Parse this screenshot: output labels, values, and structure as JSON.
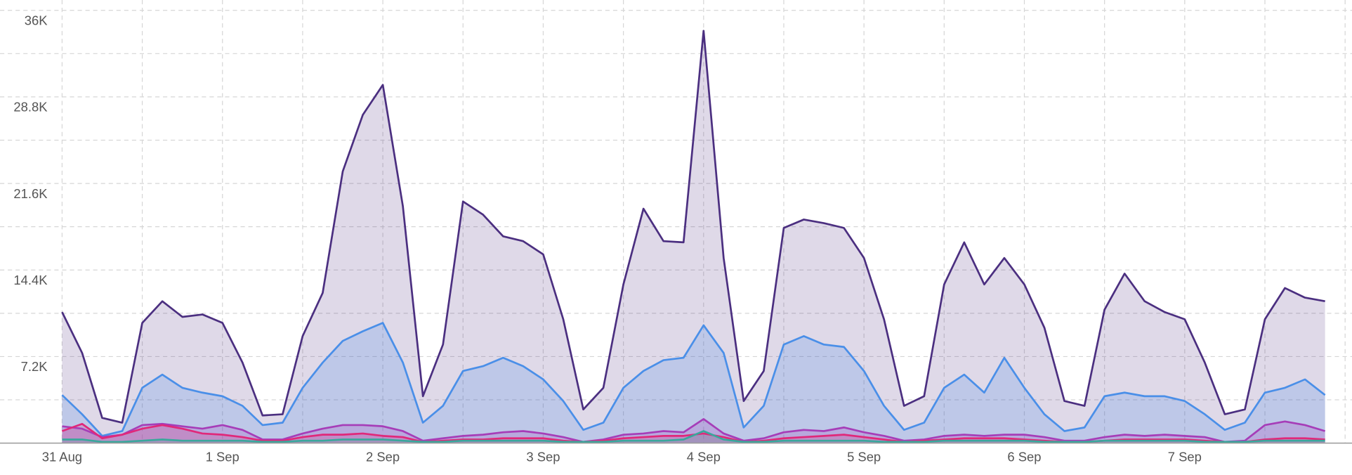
{
  "chart_data": {
    "type": "area",
    "categories": [
      "31 Aug",
      null,
      null,
      null,
      null,
      null,
      null,
      null,
      "1 Sep",
      null,
      null,
      null,
      null,
      null,
      null,
      null,
      "2 Sep",
      null,
      null,
      null,
      null,
      null,
      null,
      null,
      "3 Sep",
      null,
      null,
      null,
      null,
      null,
      null,
      null,
      "4 Sep",
      null,
      null,
      null,
      null,
      null,
      null,
      null,
      "5 Sep",
      null,
      null,
      null,
      null,
      null,
      null,
      null,
      "6 Sep",
      null,
      null,
      null,
      null,
      null,
      null,
      null,
      "7 Sep",
      null,
      null,
      null,
      null,
      null,
      null,
      null
    ],
    "ylim": [
      0,
      36000
    ],
    "yticks": [
      {
        "value": 7200,
        "label": "7.2K"
      },
      {
        "value": 14400,
        "label": "14.4K"
      },
      {
        "value": 21600,
        "label": "21.6K"
      },
      {
        "value": 28800,
        "label": "28.8K"
      },
      {
        "value": 36000,
        "label": "36K"
      }
    ],
    "minor_yticks": [
      3600,
      10800,
      18000,
      25200,
      32400
    ],
    "grid": true,
    "series": [
      {
        "color": "#4b2f80",
        "values": [
          10900,
          7500,
          2100,
          1700,
          10000,
          11800,
          10500,
          10700,
          10000,
          6700,
          2300,
          2400,
          8900,
          12500,
          22600,
          27300,
          29800,
          19700,
          3900,
          8200,
          20100,
          19000,
          17200,
          16800,
          15700,
          10300,
          2800,
          4600,
          13200,
          19500,
          16800,
          16700,
          34300,
          15400,
          3500,
          6000,
          17900,
          18600,
          18300,
          17900,
          15400,
          10300,
          3100,
          3900,
          13200,
          16700,
          13200,
          15400,
          13200,
          9600,
          3500,
          3100,
          11100,
          14100,
          11800,
          10900,
          10300,
          6700,
          2400,
          2800,
          10300,
          12900,
          12100,
          11800
        ]
      },
      {
        "color": "#4a8fe8",
        "values": [
          4000,
          2400,
          600,
          1000,
          4600,
          5700,
          4600,
          4200,
          3900,
          3100,
          1500,
          1700,
          4600,
          6700,
          8500,
          9300,
          10000,
          6700,
          1700,
          3100,
          6000,
          6400,
          7100,
          6400,
          5300,
          3500,
          1100,
          1700,
          4600,
          6000,
          6900,
          7100,
          9800,
          7500,
          1300,
          3100,
          8200,
          8900,
          8200,
          8000,
          6000,
          3100,
          1100,
          1700,
          4600,
          5700,
          4200,
          7100,
          4600,
          2400,
          1000,
          1300,
          3900,
          4200,
          3900,
          3900,
          3500,
          2400,
          1100,
          1700,
          4200,
          4600,
          5300,
          4000
        ]
      },
      {
        "color": "#a63db8",
        "values": [
          1400,
          1200,
          500,
          700,
          1500,
          1600,
          1400,
          1200,
          1500,
          1100,
          300,
          300,
          800,
          1200,
          1500,
          1500,
          1400,
          1000,
          200,
          400,
          600,
          700,
          900,
          1000,
          800,
          500,
          100,
          300,
          700,
          800,
          1000,
          900,
          2000,
          800,
          200,
          400,
          900,
          1100,
          1000,
          1300,
          900,
          600,
          200,
          300,
          600,
          700,
          600,
          700,
          700,
          500,
          200,
          200,
          500,
          700,
          600,
          700,
          600,
          500,
          100,
          200,
          1500,
          1800,
          1500,
          1000
        ]
      },
      {
        "color": "#e0287a",
        "values": [
          1000,
          1600,
          400,
          700,
          1200,
          1500,
          1200,
          800,
          700,
          500,
          200,
          200,
          500,
          700,
          700,
          800,
          600,
          500,
          100,
          200,
          300,
          300,
          400,
          400,
          400,
          200,
          100,
          200,
          400,
          500,
          600,
          600,
          800,
          500,
          100,
          200,
          400,
          500,
          600,
          700,
          500,
          300,
          100,
          200,
          300,
          400,
          400,
          400,
          300,
          200,
          100,
          100,
          200,
          300,
          300,
          300,
          300,
          200,
          100,
          100,
          300,
          400,
          400,
          300
        ]
      },
      {
        "color": "#3aa79c",
        "values": [
          300,
          300,
          100,
          100,
          200,
          300,
          200,
          200,
          200,
          200,
          100,
          100,
          200,
          200,
          300,
          300,
          300,
          200,
          100,
          100,
          200,
          200,
          200,
          200,
          200,
          100,
          100,
          100,
          200,
          200,
          200,
          300,
          1000,
          300,
          100,
          100,
          200,
          200,
          200,
          200,
          200,
          100,
          100,
          100,
          200,
          200,
          200,
          200,
          200,
          100,
          100,
          100,
          200,
          200,
          200,
          200,
          200,
          100,
          100,
          100,
          200,
          200,
          200,
          200
        ]
      }
    ]
  }
}
